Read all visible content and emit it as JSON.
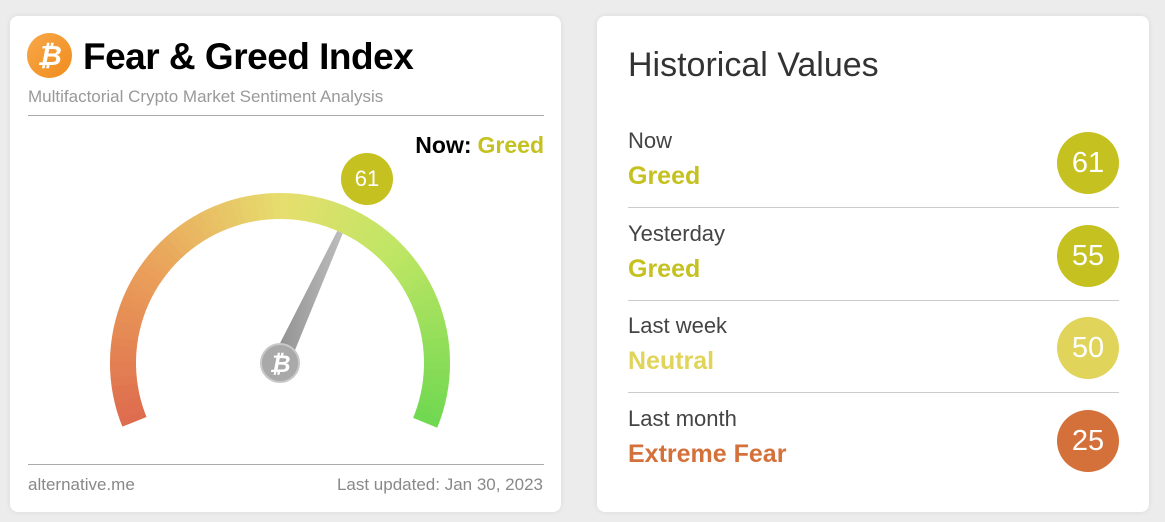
{
  "widget": {
    "title": "Fear & Greed Index",
    "subtitle": "Multifactorial Crypto Market Sentiment Analysis",
    "now_label": "Now:",
    "now_class": "Greed",
    "value": 61,
    "value_text": "61",
    "source": "alternative.me",
    "last_updated": "Last updated: Jan 30, 2023",
    "logo_glyph": "₿",
    "accent": "#c5c120"
  },
  "historical": {
    "title": "Historical Values",
    "rows": [
      {
        "label": "Now",
        "classification": "Greed",
        "value": "61",
        "color": "#c5c120"
      },
      {
        "label": "Yesterday",
        "classification": "Greed",
        "value": "55",
        "color": "#c5c120"
      },
      {
        "label": "Last week",
        "classification": "Neutral",
        "value": "50",
        "color": "#e0d45a"
      },
      {
        "label": "Last month",
        "classification": "Extreme Fear",
        "value": "25",
        "color": "#d4703a"
      }
    ]
  }
}
